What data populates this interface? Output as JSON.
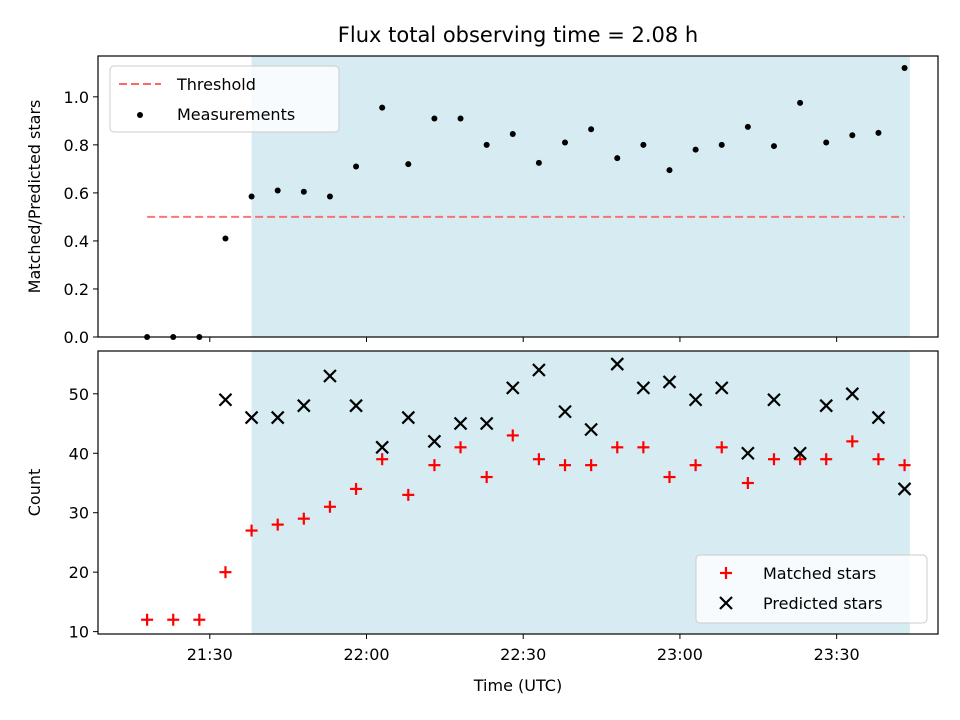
{
  "chart_data": [
    {
      "type": "scatter",
      "title": "Flux total observing time = 2.08 h",
      "xlabel": "",
      "ylabel": "Matched/Predicted stars",
      "ylim": [
        0,
        1.17
      ],
      "yticks": [
        "0.0",
        "0.2",
        "0.4",
        "0.6",
        "0.8",
        "1.0"
      ],
      "legend_position": "top-left",
      "highlight_span": {
        "from": "21:38",
        "to": "23:44",
        "color": "#add8e6"
      },
      "threshold": {
        "name": "Threshold",
        "value": 0.5,
        "from": "21:18",
        "to": "23:43",
        "color": "#ff6666",
        "style": "dashed"
      },
      "series": [
        {
          "name": "Measurements",
          "marker": "dot",
          "color": "#000000",
          "points": [
            [
              "21:18",
              0.0
            ],
            [
              "21:23",
              0.0
            ],
            [
              "21:28",
              0.0
            ],
            [
              "21:33",
              0.41
            ],
            [
              "21:38",
              0.585
            ],
            [
              "21:43",
              0.61
            ],
            [
              "21:48",
              0.605
            ],
            [
              "21:53",
              0.585
            ],
            [
              "21:58",
              0.71
            ],
            [
              "22:03",
              0.955
            ],
            [
              "22:08",
              0.72
            ],
            [
              "22:13",
              0.91
            ],
            [
              "22:18",
              0.91
            ],
            [
              "22:23",
              0.8
            ],
            [
              "22:28",
              0.845
            ],
            [
              "22:33",
              0.725
            ],
            [
              "22:38",
              0.81
            ],
            [
              "22:43",
              0.865
            ],
            [
              "22:48",
              0.745
            ],
            [
              "22:53",
              0.8
            ],
            [
              "22:58",
              0.695
            ],
            [
              "23:03",
              0.78
            ],
            [
              "23:08",
              0.8
            ],
            [
              "23:13",
              0.875
            ],
            [
              "23:18",
              0.795
            ],
            [
              "23:23",
              0.975
            ],
            [
              "23:28",
              0.81
            ],
            [
              "23:33",
              0.84
            ],
            [
              "23:38",
              0.85
            ],
            [
              "23:43",
              1.12
            ]
          ]
        }
      ]
    },
    {
      "type": "scatter",
      "title": "",
      "xlabel": "Time (UTC)",
      "ylabel": "Count",
      "ylim": [
        9.6,
        57.2
      ],
      "yticks": [
        "10",
        "20",
        "30",
        "40",
        "50"
      ],
      "xticks": [
        "21:30",
        "22:00",
        "22:30",
        "23:00",
        "23:30"
      ],
      "legend_position": "bottom-right",
      "highlight_span": {
        "from": "21:38",
        "to": "23:44",
        "color": "#add8e6"
      },
      "series": [
        {
          "name": "Matched stars",
          "marker": "plus",
          "color": "#ff0000",
          "points": [
            [
              "21:18",
              12
            ],
            [
              "21:23",
              12
            ],
            [
              "21:28",
              12
            ],
            [
              "21:33",
              20
            ],
            [
              "21:38",
              27
            ],
            [
              "21:43",
              28
            ],
            [
              "21:48",
              29
            ],
            [
              "21:53",
              31
            ],
            [
              "21:58",
              34
            ],
            [
              "22:03",
              39
            ],
            [
              "22:08",
              33
            ],
            [
              "22:13",
              38
            ],
            [
              "22:18",
              41
            ],
            [
              "22:23",
              36
            ],
            [
              "22:28",
              43
            ],
            [
              "22:33",
              39
            ],
            [
              "22:38",
              38
            ],
            [
              "22:43",
              38
            ],
            [
              "22:48",
              41
            ],
            [
              "22:53",
              41
            ],
            [
              "22:58",
              36
            ],
            [
              "23:03",
              38
            ],
            [
              "23:08",
              41
            ],
            [
              "23:13",
              35
            ],
            [
              "23:18",
              39
            ],
            [
              "23:23",
              39
            ],
            [
              "23:28",
              39
            ],
            [
              "23:33",
              42
            ],
            [
              "23:38",
              39
            ],
            [
              "23:43",
              38
            ]
          ]
        },
        {
          "name": "Predicted stars",
          "marker": "x",
          "color": "#000000",
          "points": [
            [
              "21:33",
              49
            ],
            [
              "21:38",
              46
            ],
            [
              "21:43",
              46
            ],
            [
              "21:48",
              48
            ],
            [
              "21:53",
              53
            ],
            [
              "21:58",
              48
            ],
            [
              "22:03",
              41
            ],
            [
              "22:08",
              46
            ],
            [
              "22:13",
              42
            ],
            [
              "22:18",
              45
            ],
            [
              "22:23",
              45
            ],
            [
              "22:28",
              51
            ],
            [
              "22:33",
              54
            ],
            [
              "22:38",
              47
            ],
            [
              "22:43",
              44
            ],
            [
              "22:48",
              55
            ],
            [
              "22:53",
              51
            ],
            [
              "22:58",
              52
            ],
            [
              "23:03",
              49
            ],
            [
              "23:08",
              51
            ],
            [
              "23:13",
              40
            ],
            [
              "23:18",
              49
            ],
            [
              "23:23",
              40
            ],
            [
              "23:28",
              48
            ],
            [
              "23:33",
              50
            ],
            [
              "23:38",
              46
            ],
            [
              "23:43",
              34
            ]
          ]
        }
      ]
    }
  ]
}
